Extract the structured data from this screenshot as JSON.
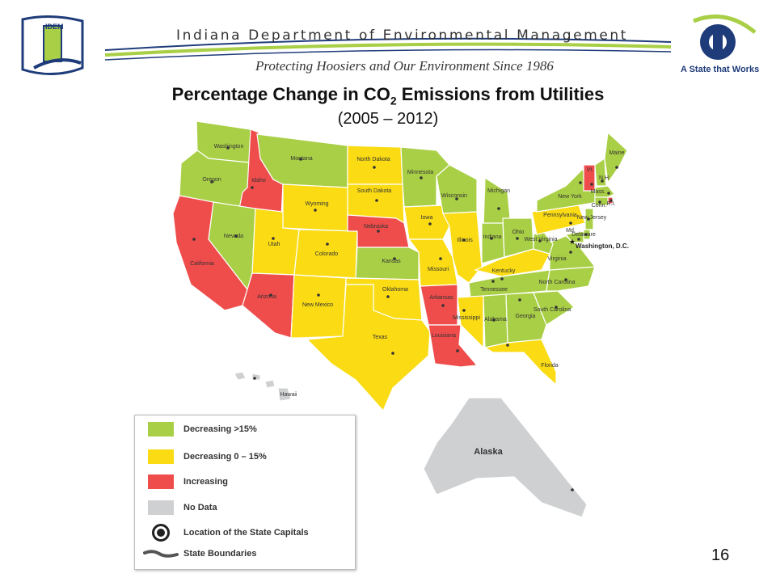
{
  "header": {
    "agency_name": "Indiana Department of Environmental Management",
    "tagline": "Protecting Hoosiers and Our Environment Since 1986",
    "idem_logo_text": "IDEM",
    "state_slogan": "A State that Works"
  },
  "title": {
    "main_prefix": "Percentage Change in CO",
    "main_subscript": "2",
    "main_suffix": " Emissions from Utilities",
    "subtitle": "(2005 – 2012)"
  },
  "colors": {
    "decreasing_gt15": "#a9cf46",
    "decreasing_0_15": "#fadb14",
    "increasing": "#ef4c4c",
    "no_data": "#cfd0d2",
    "boundary": "#555555"
  },
  "legend": {
    "items": [
      {
        "label": "Decreasing >15%",
        "category": "decreasing_gt15"
      },
      {
        "label": "Decreasing 0 – 15%",
        "category": "decreasing_0_15"
      },
      {
        "label": "Increasing",
        "category": "increasing"
      },
      {
        "label": "No Data",
        "category": "no_data"
      }
    ],
    "capital_label": "Location of the State Capitals",
    "boundary_label": "State Boundaries"
  },
  "states": [
    {
      "name": "Washington",
      "category": "decreasing_gt15"
    },
    {
      "name": "Oregon",
      "category": "decreasing_gt15"
    },
    {
      "name": "California",
      "category": "increasing"
    },
    {
      "name": "Idaho",
      "category": "increasing"
    },
    {
      "name": "Nevada",
      "category": "decreasing_gt15"
    },
    {
      "name": "Montana",
      "category": "decreasing_gt15"
    },
    {
      "name": "Wyoming",
      "category": "decreasing_0_15"
    },
    {
      "name": "Utah",
      "category": "decreasing_0_15"
    },
    {
      "name": "Colorado",
      "category": "decreasing_0_15"
    },
    {
      "name": "Arizona",
      "category": "increasing"
    },
    {
      "name": "New Mexico",
      "category": "decreasing_0_15"
    },
    {
      "name": "North Dakota",
      "category": "decreasing_0_15"
    },
    {
      "name": "South Dakota",
      "category": "decreasing_0_15"
    },
    {
      "name": "Nebraska",
      "category": "increasing"
    },
    {
      "name": "Kansas",
      "category": "decreasing_gt15"
    },
    {
      "name": "Oklahoma",
      "category": "decreasing_0_15"
    },
    {
      "name": "Texas",
      "category": "decreasing_0_15"
    },
    {
      "name": "Minnesota",
      "category": "decreasing_gt15"
    },
    {
      "name": "Iowa",
      "category": "decreasing_0_15"
    },
    {
      "name": "Missouri",
      "category": "decreasing_0_15"
    },
    {
      "name": "Arkansas",
      "category": "increasing"
    },
    {
      "name": "Louisiana",
      "category": "increasing"
    },
    {
      "name": "Wisconsin",
      "category": "decreasing_gt15"
    },
    {
      "name": "Illinois",
      "category": "decreasing_0_15"
    },
    {
      "name": "Michigan",
      "category": "decreasing_gt15"
    },
    {
      "name": "Indiana",
      "category": "decreasing_gt15"
    },
    {
      "name": "Ohio",
      "category": "decreasing_gt15"
    },
    {
      "name": "Kentucky",
      "category": "decreasing_0_15"
    },
    {
      "name": "Tennessee",
      "category": "decreasing_gt15"
    },
    {
      "name": "Mississippi",
      "category": "decreasing_0_15"
    },
    {
      "name": "Alabama",
      "category": "decreasing_gt15"
    },
    {
      "name": "Georgia",
      "category": "decreasing_gt15"
    },
    {
      "name": "Florida",
      "category": "decreasing_0_15"
    },
    {
      "name": "South Carolina",
      "category": "decreasing_gt15"
    },
    {
      "name": "North Carolina",
      "category": "decreasing_gt15"
    },
    {
      "name": "Virginia",
      "category": "decreasing_gt15"
    },
    {
      "name": "West Virginia",
      "category": "decreasing_gt15"
    },
    {
      "name": "Pennsylvania",
      "category": "decreasing_0_15"
    },
    {
      "name": "New York",
      "category": "decreasing_gt15"
    },
    {
      "name": "Vermont",
      "category": "increasing"
    },
    {
      "name": "New Hampshire",
      "category": "decreasing_gt15"
    },
    {
      "name": "Maine",
      "category": "decreasing_gt15"
    },
    {
      "name": "Massachusetts",
      "category": "decreasing_gt15"
    },
    {
      "name": "Rhode Island",
      "category": "increasing"
    },
    {
      "name": "Connecticut",
      "category": "decreasing_gt15"
    },
    {
      "name": "New Jersey",
      "category": "decreasing_gt15"
    },
    {
      "name": "Delaware",
      "category": "decreasing_gt15"
    },
    {
      "name": "Maryland",
      "category": "decreasing_gt15"
    },
    {
      "name": "Hawaii",
      "category": "no_data"
    },
    {
      "name": "Alaska",
      "category": "no_data"
    }
  ],
  "map_labels": {
    "Washington": "Washington",
    "Oregon": "Oregon",
    "California": "California",
    "Idaho": "Idaho",
    "Nevada": "Nevada",
    "Montana": "Montana",
    "Wyoming": "Wyoming",
    "Utah": "Utah",
    "Colorado": "Colorado",
    "Arizona": "Arizona",
    "New Mexico": "New Mexico",
    "North Dakota": "North Dakota",
    "South Dakota": "South Dakota",
    "Nebraska": "Nebraska",
    "Kansas": "Kansas",
    "Oklahoma": "Oklahoma",
    "Texas": "Texas",
    "Minnesota": "Minnesota",
    "Iowa": "Iowa",
    "Missouri": "Missouri",
    "Arkansas": "Arkansas",
    "Louisiana": "Louisiana",
    "Wisconsin": "Wisconsin",
    "Illinois": "Illinois",
    "Michigan": "Michigan",
    "Indiana": "Indiana",
    "Ohio": "Ohio",
    "Kentucky": "Kentucky",
    "Tennessee": "Tennessee",
    "Mississippi": "Mississippi",
    "Alabama": "Alabama",
    "Georgia": "Georgia",
    "Florida": "Florida",
    "South Carolina": "South Carolina",
    "North Carolina": "North Carolina",
    "Virginia": "Virginia",
    "West Virginia": "West Virginia",
    "Pennsylvania": "Pennsylvania",
    "New York": "New York",
    "Vermont": "Vt.",
    "New Hampshire": "N.H.",
    "Maine": "Maine",
    "Massachusetts": "Mass.",
    "Rhode Island": "R.I.",
    "Connecticut": "Conn.",
    "New Jersey": "New Jersey",
    "Delaware": "Delaware",
    "Maryland": "Md.",
    "Hawaii": "Hawaii",
    "Alaska": "Alaska",
    "DC": "Washington, D.C."
  },
  "page_number": "16"
}
